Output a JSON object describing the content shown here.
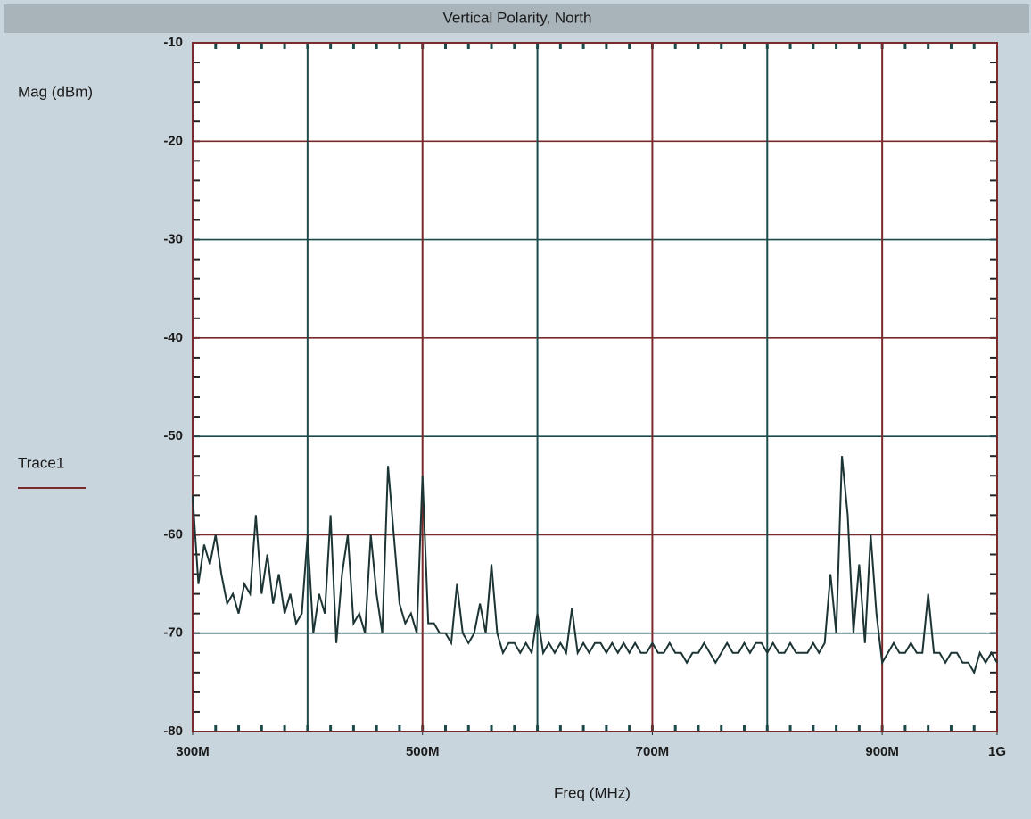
{
  "chart_data": {
    "type": "line",
    "title": "Vertical Polarity, North",
    "x_label": "Freq (MHz)",
    "y_label": "Mag (dBm)",
    "xlim": [
      300,
      1000
    ],
    "ylim": [
      -80,
      -10
    ],
    "xticks": [
      {
        "value": 300,
        "label": "300M"
      },
      {
        "value": 500,
        "label": "500M"
      },
      {
        "value": 700,
        "label": "700M"
      },
      {
        "value": 900,
        "label": "900M"
      },
      {
        "value": 1000,
        "label": "1G"
      }
    ],
    "xgrid": [
      400,
      500,
      600,
      700,
      800,
      900
    ],
    "yticks": [
      -80,
      -70,
      -60,
      -50,
      -40,
      -30,
      -20,
      -10
    ],
    "grid": true,
    "series": [
      {
        "name": "Trace1",
        "color": "#1c3434",
        "x": [
          300,
          305,
          310,
          315,
          320,
          325,
          330,
          335,
          340,
          345,
          350,
          355,
          360,
          365,
          370,
          375,
          380,
          385,
          390,
          395,
          400,
          405,
          410,
          415,
          420,
          425,
          430,
          435,
          440,
          445,
          450,
          455,
          460,
          465,
          470,
          475,
          480,
          485,
          490,
          495,
          500,
          505,
          510,
          515,
          520,
          525,
          530,
          535,
          540,
          545,
          550,
          555,
          560,
          565,
          570,
          575,
          580,
          585,
          590,
          595,
          600,
          605,
          610,
          615,
          620,
          625,
          630,
          635,
          640,
          645,
          650,
          655,
          660,
          665,
          670,
          675,
          680,
          685,
          690,
          695,
          700,
          705,
          710,
          715,
          720,
          725,
          730,
          735,
          740,
          745,
          750,
          755,
          760,
          765,
          770,
          775,
          780,
          785,
          790,
          795,
          800,
          805,
          810,
          815,
          820,
          825,
          830,
          835,
          840,
          845,
          850,
          855,
          860,
          865,
          870,
          875,
          880,
          885,
          890,
          895,
          900,
          905,
          910,
          915,
          920,
          925,
          930,
          935,
          940,
          945,
          950,
          955,
          960,
          965,
          970,
          975,
          980,
          985,
          990,
          995,
          1000
        ],
        "values": [
          -56,
          -65,
          -61,
          -63,
          -60,
          -64,
          -67,
          -66,
          -68,
          -65,
          -66,
          -58,
          -66,
          -62,
          -67,
          -64,
          -68,
          -66,
          -69,
          -68,
          -60,
          -70,
          -66,
          -68,
          -58,
          -71,
          -64,
          -60,
          -69,
          -68,
          -70,
          -60,
          -66,
          -70,
          -53,
          -60,
          -67,
          -69,
          -68,
          -70,
          -54,
          -69,
          -69,
          -70,
          -70,
          -71,
          -65,
          -70,
          -71,
          -70,
          -67,
          -70,
          -63,
          -70,
          -72,
          -71,
          -71,
          -72,
          -71,
          -72,
          -68,
          -72,
          -71,
          -72,
          -71,
          -72,
          -67.5,
          -72,
          -71,
          -72,
          -71,
          -71,
          -72,
          -71,
          -72,
          -71,
          -72,
          -71,
          -72,
          -72,
          -71,
          -72,
          -72,
          -71,
          -72,
          -72,
          -73,
          -72,
          -72,
          -71,
          -72,
          -73,
          -72,
          -71,
          -72,
          -72,
          -71,
          -72,
          -71,
          -71,
          -72,
          -71,
          -72,
          -72,
          -71,
          -72,
          -72,
          -72,
          -71,
          -72,
          -71,
          -64,
          -70,
          -52,
          -58,
          -70,
          -63,
          -71,
          -60,
          -68,
          -73,
          -72,
          -71,
          -72,
          -72,
          -71,
          -72,
          -72,
          -66,
          -72,
          -72,
          -73,
          -72,
          -72,
          -73,
          -73,
          -74,
          -72,
          -73,
          -72,
          -73
        ]
      }
    ]
  }
}
